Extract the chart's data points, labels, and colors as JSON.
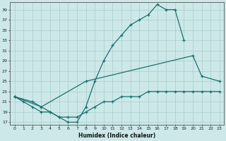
{
  "xlabel": "Humidex (Indice chaleur)",
  "background_color": "#cce8e8",
  "grid_color": "#aacccc",
  "line_color": "#1a7070",
  "xlim": [
    -0.5,
    23.5
  ],
  "ylim": [
    16.5,
    40.5
  ],
  "yticks": [
    17,
    19,
    21,
    23,
    25,
    27,
    29,
    31,
    33,
    35,
    37,
    39
  ],
  "xticks": [
    0,
    1,
    2,
    3,
    4,
    5,
    6,
    7,
    8,
    9,
    10,
    11,
    12,
    13,
    14,
    15,
    16,
    17,
    18,
    19,
    20,
    21,
    22,
    23
  ],
  "line1_x": [
    0,
    1,
    2,
    3,
    4,
    5,
    6,
    7,
    8,
    9,
    10,
    11,
    12,
    13,
    14,
    15,
    16,
    17,
    18,
    19
  ],
  "line1_y": [
    22,
    21,
    20,
    19,
    19,
    18,
    17,
    17,
    20,
    25,
    29,
    32,
    34,
    36,
    37,
    38,
    40,
    39,
    39,
    33
  ],
  "line2_x": [
    0,
    3,
    8,
    20,
    21,
    23
  ],
  "line2_y": [
    22,
    20,
    25,
    30,
    26,
    25
  ],
  "line3_x": [
    0,
    2,
    3,
    4,
    5,
    6,
    7,
    8,
    9,
    10,
    11,
    12,
    13,
    14,
    15,
    16,
    17,
    18,
    19,
    20,
    21,
    22,
    23
  ],
  "line3_y": [
    22,
    21,
    20,
    19,
    18,
    18,
    18,
    19,
    20,
    21,
    21,
    22,
    22,
    22,
    23,
    23,
    23,
    23,
    23,
    23,
    23,
    23,
    23
  ]
}
